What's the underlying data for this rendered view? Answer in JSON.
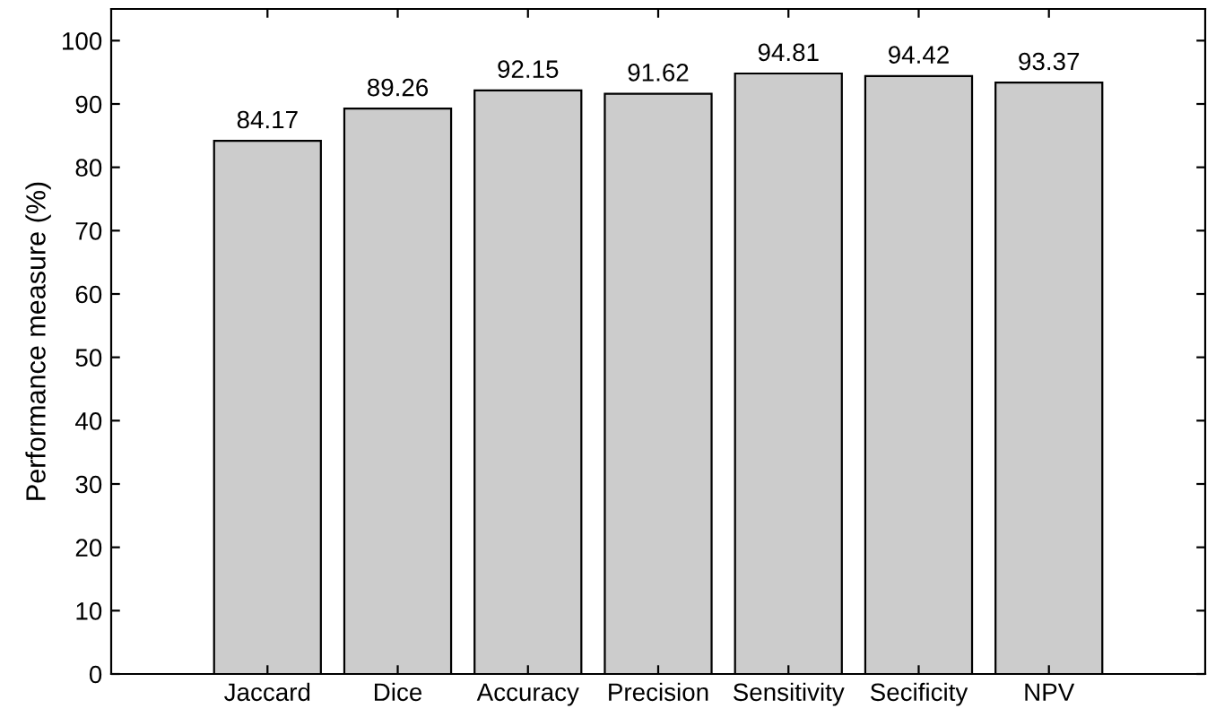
{
  "chart_data": {
    "type": "bar",
    "ylabel": "Performance measure (%)",
    "categories": [
      "Jaccard",
      "Dice",
      "Accuracy",
      "Precision",
      "Sensitivity",
      "Secificity",
      "NPV"
    ],
    "values": [
      84.17,
      89.26,
      92.15,
      91.62,
      94.81,
      94.42,
      93.37
    ],
    "color": "#cccccc",
    "data_labels": true,
    "grid": false,
    "legend": false,
    "ylim": [
      0,
      105
    ],
    "yticks": [
      0,
      10,
      20,
      30,
      40,
      50,
      60,
      70,
      80,
      90,
      100
    ]
  }
}
